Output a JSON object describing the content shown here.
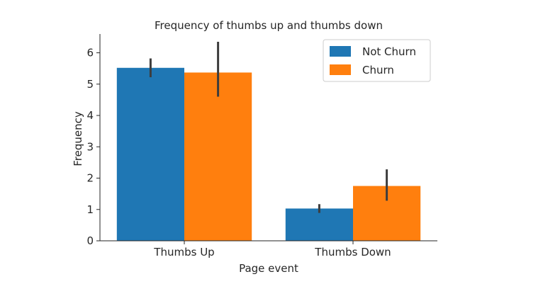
{
  "chart_data": {
    "type": "bar",
    "title": "Frequency of thumbs up and thumbs down",
    "xlabel": "Page event",
    "ylabel": "Frequency",
    "categories": [
      "Thumbs Up",
      "Thumbs Down"
    ],
    "ylim": [
      0,
      6.6
    ],
    "yticks": [
      0,
      1,
      2,
      3,
      4,
      5,
      6
    ],
    "grid": false,
    "legend_position": "top-right",
    "series": [
      {
        "name": "Not Churn",
        "color": "#1f77b4",
        "values": [
          5.52,
          1.03
        ],
        "error_low": [
          5.22,
          0.89
        ],
        "error_high": [
          5.82,
          1.17
        ]
      },
      {
        "name": "Churn",
        "color": "#ff7f0e",
        "values": [
          5.37,
          1.75
        ],
        "error_low": [
          4.6,
          1.28
        ],
        "error_high": [
          6.35,
          2.28
        ]
      }
    ],
    "error_bar_color": "#3d3d3d"
  }
}
